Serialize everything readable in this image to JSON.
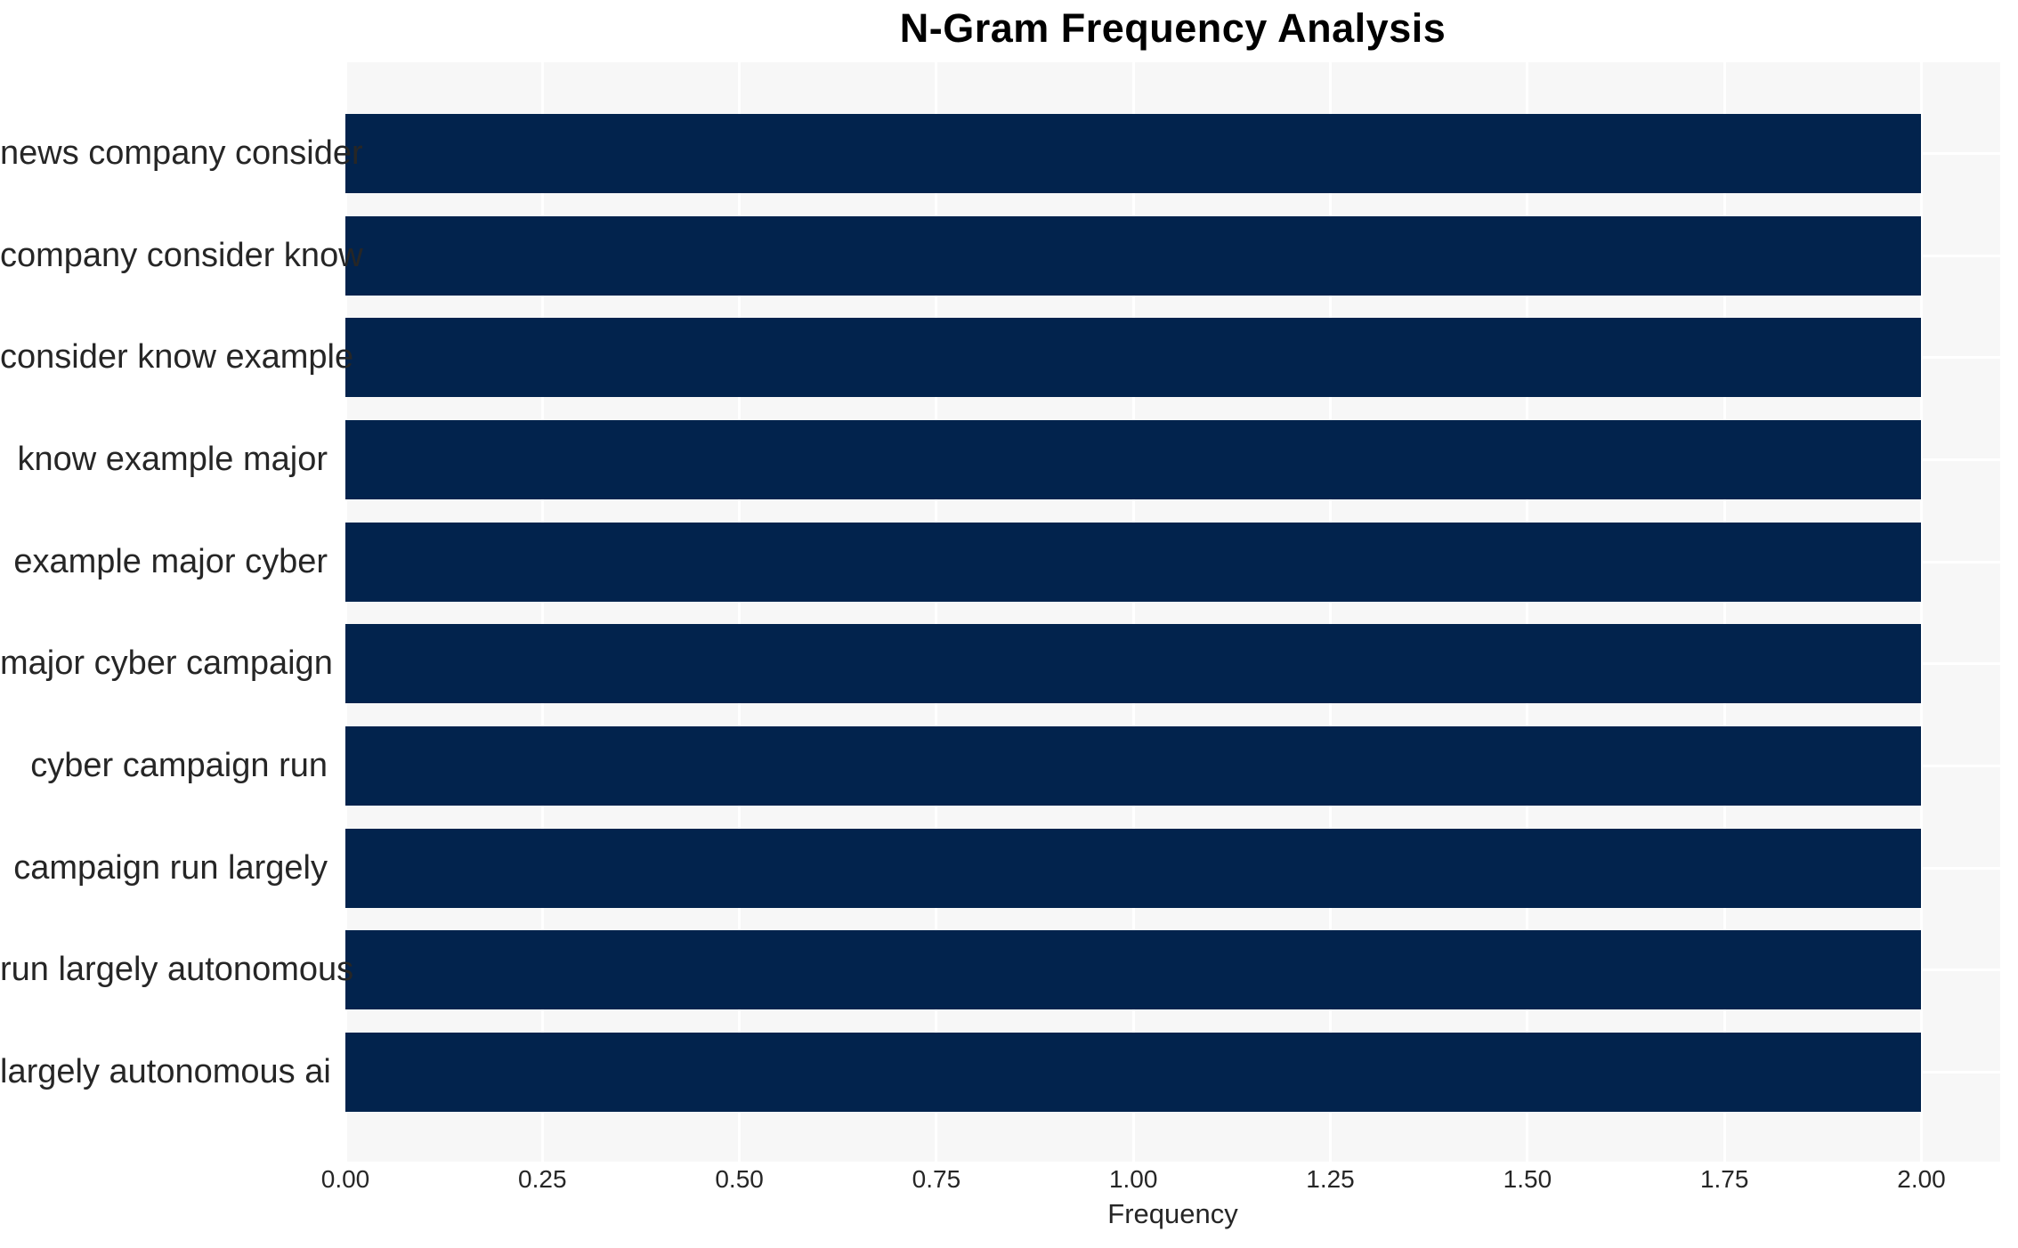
{
  "chart_data": {
    "type": "bar",
    "orientation": "horizontal",
    "title": "N-Gram Frequency Analysis",
    "xlabel": "Frequency",
    "ylabel": "",
    "categories": [
      "news company consider",
      "company consider know",
      "consider know example",
      "know example major",
      "example major cyber",
      "major cyber campaign",
      "cyber campaign run",
      "campaign run largely",
      "run largely autonomous",
      "largely autonomous ai"
    ],
    "values": [
      2.0,
      2.0,
      2.0,
      2.0,
      2.0,
      2.0,
      2.0,
      2.0,
      2.0,
      2.0
    ],
    "x_ticks": [
      "0.00",
      "0.25",
      "0.50",
      "0.75",
      "1.00",
      "1.25",
      "1.50",
      "1.75",
      "2.00"
    ],
    "x_tick_values": [
      0,
      0.25,
      0.5,
      0.75,
      1.0,
      1.25,
      1.5,
      1.75,
      2.0
    ],
    "xlim": [
      0,
      2.1
    ],
    "grid": true,
    "legend": false,
    "colors": {
      "bar": "#02234d",
      "plot_background": "#f7f7f7",
      "gridline": "#ffffff",
      "text": "#262626",
      "title": "#000000"
    }
  }
}
